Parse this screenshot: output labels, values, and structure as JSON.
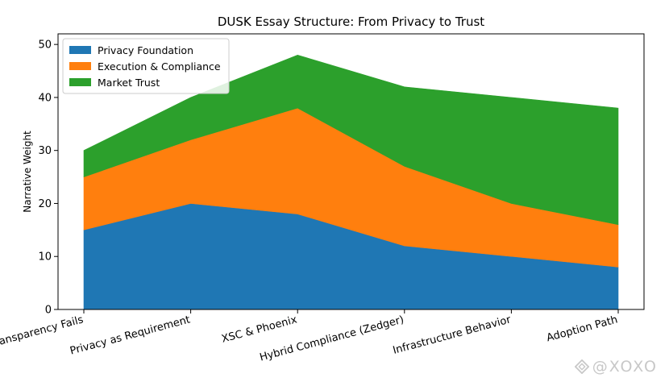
{
  "chart_data": {
    "type": "area",
    "stacked": true,
    "title": "DUSK Essay Structure: From Privacy to Trust",
    "xlabel": "",
    "ylabel": "Narrative Weight",
    "categories": [
      "Why Full Transparency Fails",
      "Privacy as Requirement",
      "XSC & Phoenix",
      "Hybrid Compliance (Zedger)",
      "Infrastructure Behavior",
      "Adoption Path"
    ],
    "series": [
      {
        "name": "Privacy Foundation",
        "values": [
          15,
          20,
          18,
          12,
          10,
          8
        ],
        "color": "#1f77b4"
      },
      {
        "name": "Execution & Compliance",
        "values": [
          10,
          12,
          20,
          15,
          10,
          8
        ],
        "color": "#ff7f0e"
      },
      {
        "name": "Market Trust",
        "values": [
          5,
          8,
          10,
          15,
          20,
          22
        ],
        "color": "#2ca02c"
      }
    ],
    "ylim": [
      0,
      52
    ],
    "yticks": [
      0,
      10,
      20,
      30,
      40,
      50
    ],
    "grid": false,
    "legend_position": "upper-left"
  },
  "watermark": {
    "text": "@XOXO",
    "icon": "diamond-logo-icon"
  }
}
